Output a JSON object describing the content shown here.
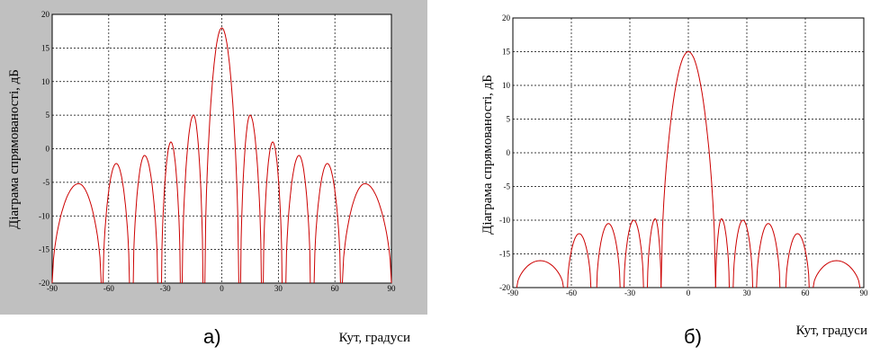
{
  "chart_data": [
    {
      "type": "line",
      "panel": "a",
      "caption": "а)",
      "xlabel": "Кут, градуси",
      "ylabel": "Діаграма спрямованості, дБ",
      "xlim": [
        -90,
        90
      ],
      "ylim": [
        -20,
        20
      ],
      "xticks": [
        -90,
        -60,
        -30,
        0,
        30,
        60,
        90
      ],
      "yticks": [
        20,
        15,
        10,
        5,
        0,
        -5,
        -10,
        -15,
        -20
      ],
      "grid": true,
      "line_color": "#cc0000",
      "figure_background": "#c0c0c0",
      "lobes": [
        {
          "x1": -90,
          "x2": -64,
          "peak": -5.2,
          "center": -76
        },
        {
          "x1": -63,
          "x2": -49,
          "peak": -2.2,
          "center": -56
        },
        {
          "x1": -47,
          "x2": -34,
          "peak": -1,
          "center": -41
        },
        {
          "x1": -32,
          "x2": -22,
          "peak": 1,
          "center": -27
        },
        {
          "x1": -21,
          "x2": -10,
          "peak": 5,
          "center": -15
        },
        {
          "x1": -9,
          "x2": 9,
          "peak": 18,
          "center": 0
        },
        {
          "x1": 10,
          "x2": 21,
          "peak": 5,
          "center": 15
        },
        {
          "x1": 22,
          "x2": 32,
          "peak": 1,
          "center": 27
        },
        {
          "x1": 34,
          "x2": 47,
          "peak": -1,
          "center": 41
        },
        {
          "x1": 49,
          "x2": 63,
          "peak": -2.2,
          "center": 56
        },
        {
          "x1": 64,
          "x2": 90,
          "peak": -5.2,
          "center": 76
        }
      ]
    },
    {
      "type": "line",
      "panel": "b",
      "caption": "б)",
      "xlabel": "Кут, градуси",
      "ylabel": "Діаграма спрямованості, дБ",
      "xlim": [
        -90,
        90
      ],
      "ylim": [
        -20,
        20
      ],
      "xticks": [
        -90,
        -60,
        -30,
        0,
        30,
        60,
        90
      ],
      "yticks": [
        20,
        15,
        10,
        5,
        0,
        -5,
        -10,
        -15,
        -20
      ],
      "grid": true,
      "line_color": "#cc0000",
      "figure_background": "#ffffff",
      "lobes": [
        {
          "x1": -88,
          "x2": -64,
          "peak": -16,
          "center": -76
        },
        {
          "x1": -62,
          "x2": -50,
          "peak": -12,
          "center": -56
        },
        {
          "x1": -47,
          "x2": -35,
          "peak": -10.5,
          "center": -41
        },
        {
          "x1": -33,
          "x2": -23,
          "peak": -10,
          "center": -28
        },
        {
          "x1": -21,
          "x2": -14,
          "peak": -9.8,
          "center": -17
        },
        {
          "x1": -14,
          "x2": 14,
          "peak": 15,
          "center": 0
        },
        {
          "x1": 14,
          "x2": 21,
          "peak": -9.8,
          "center": 17
        },
        {
          "x1": 23,
          "x2": 33,
          "peak": -10,
          "center": 28
        },
        {
          "x1": 35,
          "x2": 47,
          "peak": -10.5,
          "center": 41
        },
        {
          "x1": 50,
          "x2": 62,
          "peak": -12,
          "center": 56
        },
        {
          "x1": 64,
          "x2": 88,
          "peak": -16,
          "center": 76
        }
      ]
    }
  ]
}
